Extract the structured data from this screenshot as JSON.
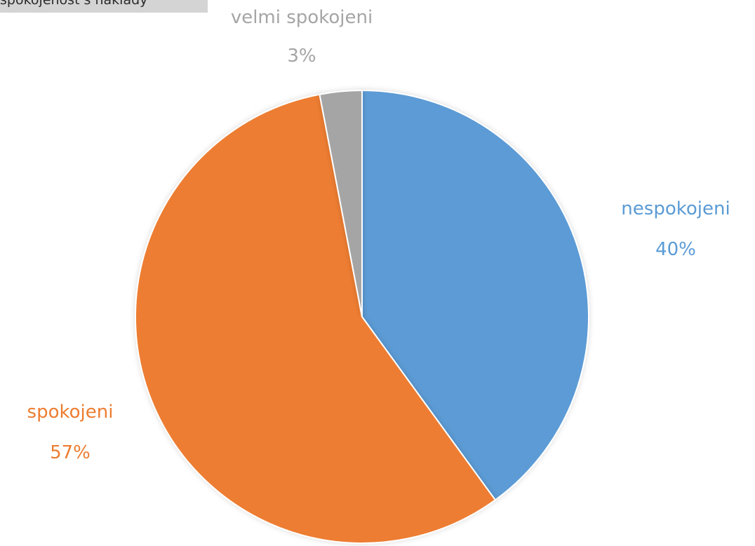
{
  "chart_data": {
    "type": "pie",
    "title": "spokojenost s náklady",
    "slices": [
      {
        "label": "nespokojeni",
        "value": 40,
        "percent_label": "40%",
        "color": "#5b9bd5"
      },
      {
        "label": "spokojeni",
        "value": 57,
        "percent_label": "57%",
        "color": "#ed7d31"
      },
      {
        "label": "velmi spokojeni",
        "value": 3,
        "percent_label": "3%",
        "color": "#a5a5a5"
      }
    ]
  }
}
